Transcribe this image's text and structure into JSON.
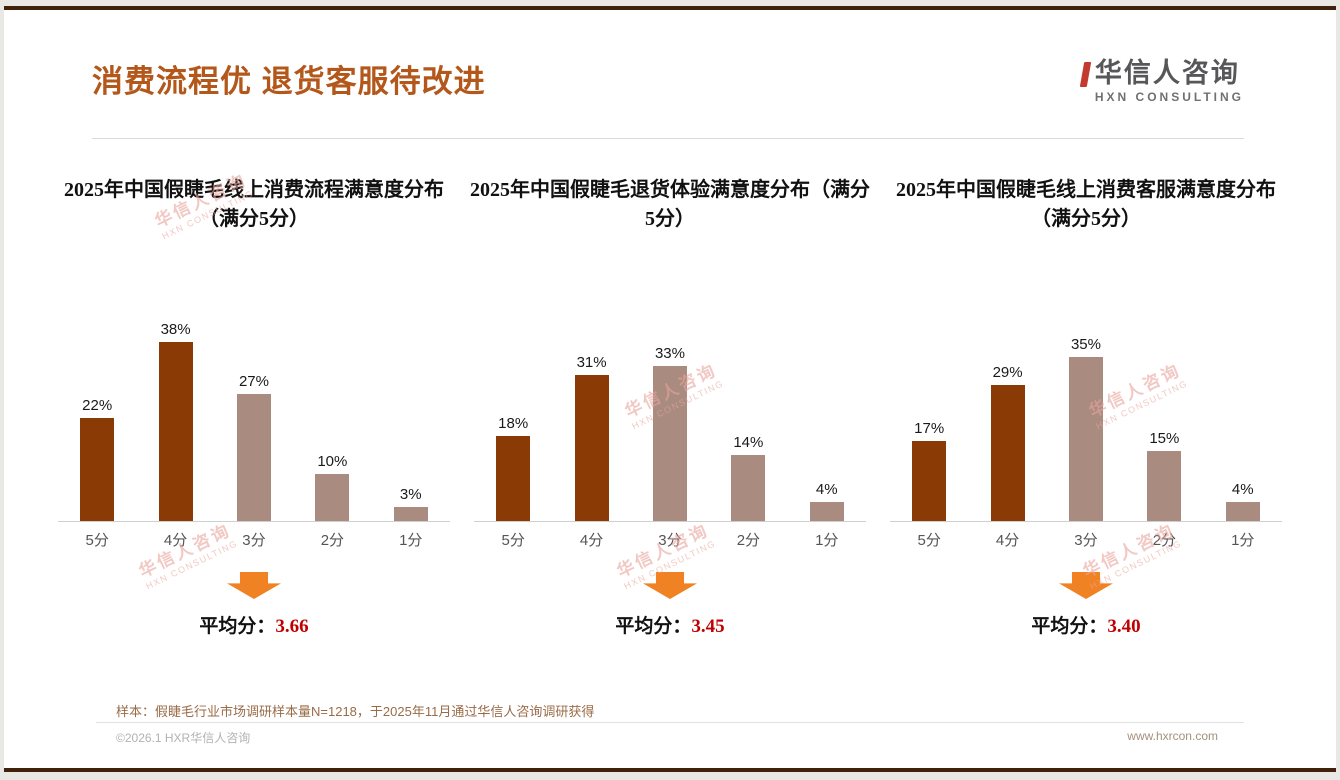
{
  "page": {
    "title": "消费流程优 退货客服待改进",
    "logo": {
      "cn": "华信人咨询",
      "en": "HXN CONSULTING"
    },
    "note": "样本：假睫毛行业市场调研样本量N=1218，于2025年11月通过华信人咨询调研获得",
    "footer_left": "©2026.1 HXR华信人咨询",
    "footer_right": "www.hxrcon.com",
    "watermark": {
      "cn": "华信人咨询",
      "en": "HXN CONSULTING"
    }
  },
  "colors": {
    "accent_title": "#B3571B",
    "bar_dark": "#8A3B05",
    "bar_light": "#A98B80",
    "arrow_orange": "#F08223",
    "average_red": "#C00000",
    "note_brown": "#9A6B47"
  },
  "chart_data": [
    {
      "type": "bar",
      "title": "2025年中国假睫毛线上消费流程满意度分布（满分5分）",
      "categories": [
        "5分",
        "4分",
        "3分",
        "2分",
        "1分"
      ],
      "values": [
        22,
        38,
        27,
        10,
        3
      ],
      "unit": "%",
      "ylim": [
        0,
        40
      ],
      "grid": false,
      "average_label": "平均分：",
      "average": "3.66"
    },
    {
      "type": "bar",
      "title": "2025年中国假睫毛退货体验满意度分布（满分5分）",
      "categories": [
        "5分",
        "4分",
        "3分",
        "2分",
        "1分"
      ],
      "values": [
        18,
        31,
        33,
        14,
        4
      ],
      "unit": "%",
      "ylim": [
        0,
        40
      ],
      "grid": false,
      "average_label": "平均分：",
      "average": "3.45"
    },
    {
      "type": "bar",
      "title": "2025年中国假睫毛线上消费客服满意度分布（满分5分）",
      "categories": [
        "5分",
        "4分",
        "3分",
        "2分",
        "1分"
      ],
      "values": [
        17,
        29,
        35,
        15,
        4
      ],
      "unit": "%",
      "ylim": [
        0,
        40
      ],
      "grid": false,
      "average_label": "平均分：",
      "average": "3.40"
    }
  ]
}
